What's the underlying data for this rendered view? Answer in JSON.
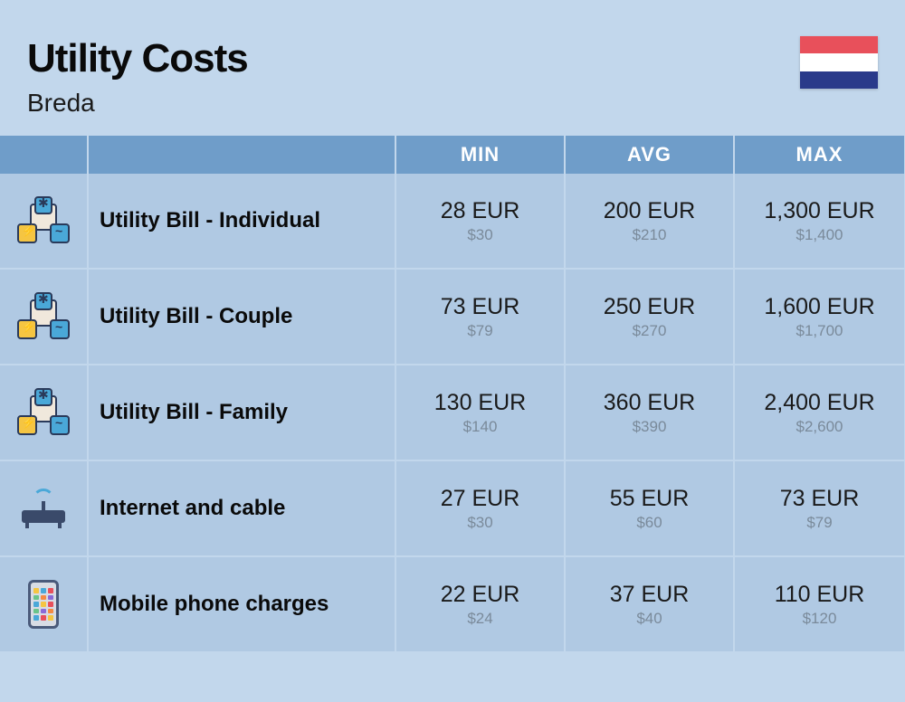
{
  "header": {
    "title": "Utility Costs",
    "subtitle": "Breda",
    "flag_colors": [
      "#e8505b",
      "#ffffff",
      "#2a3a8a"
    ]
  },
  "columns": {
    "min": "MIN",
    "avg": "AVG",
    "max": "MAX"
  },
  "rows": [
    {
      "icon": "utility",
      "label": "Utility Bill - Individual",
      "min_eur": "28 EUR",
      "min_usd": "$30",
      "avg_eur": "200 EUR",
      "avg_usd": "$210",
      "max_eur": "1,300 EUR",
      "max_usd": "$1,400"
    },
    {
      "icon": "utility",
      "label": "Utility Bill - Couple",
      "min_eur": "73 EUR",
      "min_usd": "$79",
      "avg_eur": "250 EUR",
      "avg_usd": "$270",
      "max_eur": "1,600 EUR",
      "max_usd": "$1,700"
    },
    {
      "icon": "utility",
      "label": "Utility Bill - Family",
      "min_eur": "130 EUR",
      "min_usd": "$140",
      "avg_eur": "360 EUR",
      "avg_usd": "$390",
      "max_eur": "2,400 EUR",
      "max_usd": "$2,600"
    },
    {
      "icon": "router",
      "label": "Internet and cable",
      "min_eur": "27 EUR",
      "min_usd": "$30",
      "avg_eur": "55 EUR",
      "avg_usd": "$60",
      "max_eur": "73 EUR",
      "max_usd": "$79"
    },
    {
      "icon": "phone",
      "label": "Mobile phone charges",
      "min_eur": "22 EUR",
      "min_usd": "$24",
      "avg_eur": "37 EUR",
      "avg_usd": "$40",
      "max_eur": "110 EUR",
      "max_usd": "$120"
    }
  ],
  "phone_app_colors": [
    "#f5c542",
    "#4aa8d8",
    "#e8505b",
    "#6ac48a",
    "#f58a42",
    "#8a6ad8",
    "#4aa8d8",
    "#f5c542",
    "#e8505b",
    "#6ac48a",
    "#8a6ad8",
    "#f58a42",
    "#4aa8d8",
    "#e8505b",
    "#f5c542"
  ],
  "colors": {
    "background": "#c2d7ec",
    "header_cell": "#6f9dc9",
    "body_cell": "#b0c9e3",
    "text_main": "#1a1a1a",
    "text_sub": "#7a8a9a"
  }
}
